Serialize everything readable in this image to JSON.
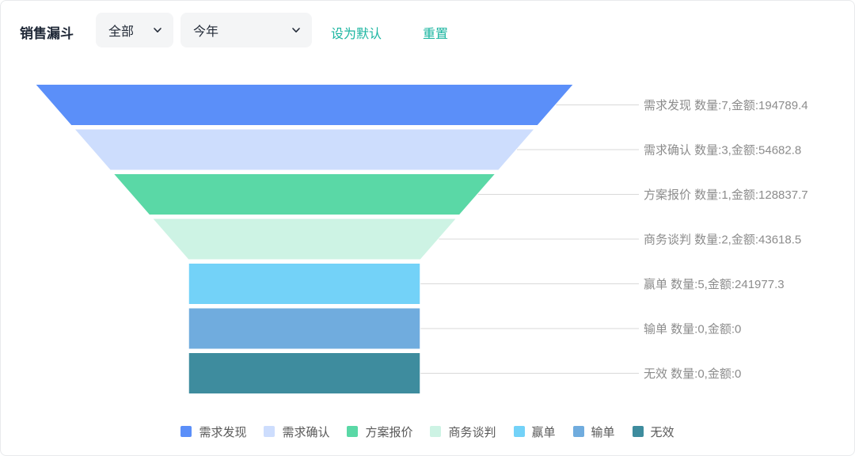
{
  "header": {
    "title": "销售漏斗",
    "filters": [
      {
        "value": "全部"
      },
      {
        "value": "今年"
      }
    ],
    "actions": {
      "set_default": "设为默认",
      "reset": "重置"
    }
  },
  "colors": {
    "accent_teal": "#1bb5a0",
    "connector_line": "#d9d9d9",
    "stage_label_text": "#8c8c8c",
    "legend_text": "#595959",
    "dropdown_bg": "#f4f5f6",
    "title_text": "#1e2736"
  },
  "chart_data": {
    "type": "funnel",
    "title": "销售漏斗",
    "legend_position": "bottom",
    "label_format": "{name} 数量:{count},金额:{amount}",
    "stages": [
      {
        "name": "需求发现",
        "count": 7,
        "amount": 194789.4,
        "color": "#5B8FF9",
        "label": "需求发现 数量:7,金额:194789.4"
      },
      {
        "name": "需求确认",
        "count": 3,
        "amount": 54682.8,
        "color": "#CDDDFD",
        "label": "需求确认 数量:3,金额:54682.8"
      },
      {
        "name": "方案报价",
        "count": 1,
        "amount": 128837.7,
        "color": "#5AD8A6",
        "label": "方案报价 数量:1,金额:128837.7"
      },
      {
        "name": "商务谈判",
        "count": 2,
        "amount": 43618.5,
        "color": "#CDF3E4",
        "label": "商务谈判 数量:2,金额:43618.5"
      },
      {
        "name": "赢单",
        "count": 5,
        "amount": 241977.3,
        "color": "#73D2F8",
        "label": "赢单 数量:5,金额:241977.3"
      },
      {
        "name": "输单",
        "count": 0,
        "amount": 0,
        "color": "#70ACDE",
        "label": "输单 数量:0,金额:0"
      },
      {
        "name": "无效",
        "count": 0,
        "amount": 0,
        "color": "#3E8C9E",
        "label": "无效 数量:0,金额:0"
      }
    ]
  }
}
